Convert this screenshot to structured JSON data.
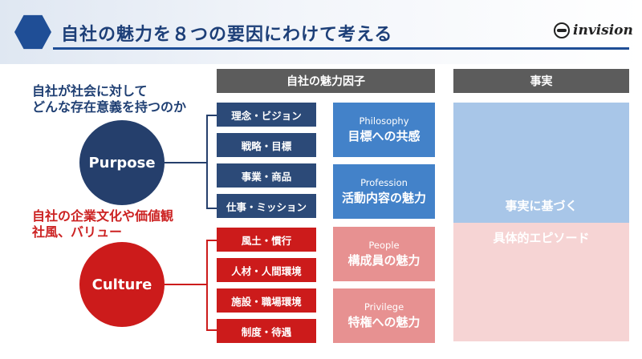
{
  "header": {
    "title": "自社の魅力を８つの要因にわけて考える",
    "logo_text": "invision",
    "accent": "#1f4e96"
  },
  "questions": {
    "purpose_line1": "自社が社会に対して",
    "purpose_line2": "どんな存在意義を持つのか",
    "culture_line1": "自社の企業文化や価値観",
    "culture_line2": "社風、バリュー"
  },
  "circles": {
    "purpose": "Purpose",
    "culture": "Culture"
  },
  "columns": {
    "factors_header": "自社の魅力因子",
    "facts_header": "事実"
  },
  "factors": [
    "理念・ビジョン",
    "戦略・目標",
    "事業・商品",
    "仕事・ミッション",
    "風土・慣行",
    "人材・人間環境",
    "施設・職場環境",
    "制度・待遇"
  ],
  "categories": [
    {
      "en": "Philosophy",
      "jp": "目標への共感"
    },
    {
      "en": "Profession",
      "jp": "活動内容の魅力"
    },
    {
      "en": "People",
      "jp": "構成員の魅力"
    },
    {
      "en": "Privilege",
      "jp": "特権への魅力"
    }
  ],
  "facts": {
    "line1": "事実に基づく",
    "line2": "具体的エピソード"
  },
  "colors": {
    "purpose_navy": "#253f6c",
    "culture_red": "#cc1b1b",
    "category_blue": "#4382c9",
    "category_pink": "#e79191"
  }
}
